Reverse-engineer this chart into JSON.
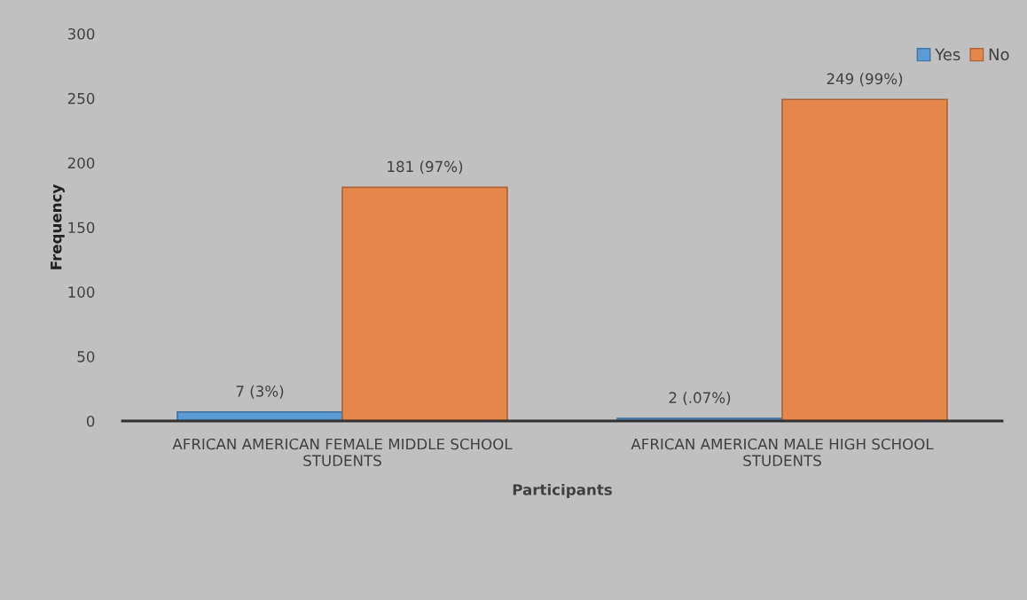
{
  "chart_data": {
    "type": "bar",
    "xlabel": "Participants",
    "ylabel": "Frequency",
    "categories": [
      "AFRICAN AMERICAN FEMALE MIDDLE SCHOOL STUDENTS",
      "AFRICAN AMERICAN MALE HIGH SCHOOL STUDENTS"
    ],
    "series": [
      {
        "name": "Yes",
        "color": "#5b9bd5",
        "values": [
          7,
          2
        ],
        "value_labels": [
          "7 (3%)",
          "2 (.07%)"
        ]
      },
      {
        "name": "No",
        "color": "#e5874a",
        "values": [
          181,
          249
        ],
        "value_labels": [
          "181 (97%)",
          "249 (99%)"
        ]
      }
    ],
    "ylim": [
      0,
      300
    ],
    "yticks": [
      0,
      50,
      100,
      150,
      200,
      250,
      300
    ],
    "grid": false,
    "legend": "top right"
  }
}
